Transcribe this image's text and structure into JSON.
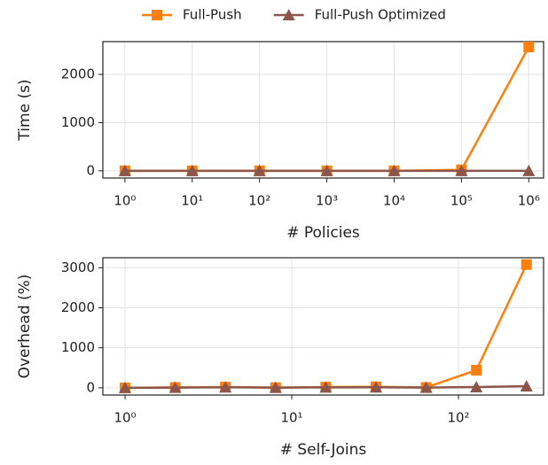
{
  "chart_data": [
    {
      "type": "line",
      "xscale": "log",
      "grid": true,
      "legend": "top",
      "xlabel": "# Policies",
      "ylabel": "Time (s)",
      "x": [
        1,
        10,
        100,
        1000,
        10000,
        100000,
        1000000
      ],
      "series": [
        {
          "name": "Full-Push",
          "color": "#ff7f0e",
          "marker": "square",
          "values": [
            0,
            0,
            0,
            0,
            0,
            20,
            2570
          ]
        },
        {
          "name": "Full-Push Optimized",
          "color": "#8c564b",
          "marker": "triangle",
          "values": [
            0,
            0,
            0,
            0,
            0,
            0,
            0
          ]
        }
      ],
      "xlim": [
        0.47,
        1660000
      ],
      "xticks": [
        {
          "value": 1,
          "label": "10⁰"
        },
        {
          "value": 10,
          "label": "10¹"
        },
        {
          "value": 100,
          "label": "10²"
        },
        {
          "value": 1000,
          "label": "10³"
        },
        {
          "value": 10000,
          "label": "10⁴"
        },
        {
          "value": 100000,
          "label": "10⁵"
        },
        {
          "value": 1000000,
          "label": "10⁶"
        }
      ],
      "ylim": [
        -150,
        2680
      ],
      "yticks": [
        0,
        1000,
        2000
      ]
    },
    {
      "type": "line",
      "xscale": "log",
      "grid": true,
      "xlabel": "# Self-Joins",
      "ylabel": "Overhead (%)",
      "x": [
        1,
        2,
        4,
        8,
        16,
        32,
        64,
        128,
        256
      ],
      "series": [
        {
          "color": "#ff7f0e",
          "marker": "square",
          "values": [
            0,
            10,
            20,
            5,
            20,
            25,
            10,
            440,
            3080
          ]
        },
        {
          "color": "#8c564b",
          "marker": "triangle",
          "values": [
            0,
            5,
            15,
            5,
            10,
            15,
            5,
            20,
            40
          ]
        }
      ],
      "xlim": [
        0.736,
        324
      ],
      "xticks": [
        {
          "value": 1,
          "label": "10⁰"
        },
        {
          "value": 10,
          "label": "10¹"
        },
        {
          "value": 100,
          "label": "10²"
        }
      ],
      "ylim": [
        -180,
        3250
      ],
      "yticks": [
        0,
        1000,
        2000,
        3000
      ]
    }
  ]
}
